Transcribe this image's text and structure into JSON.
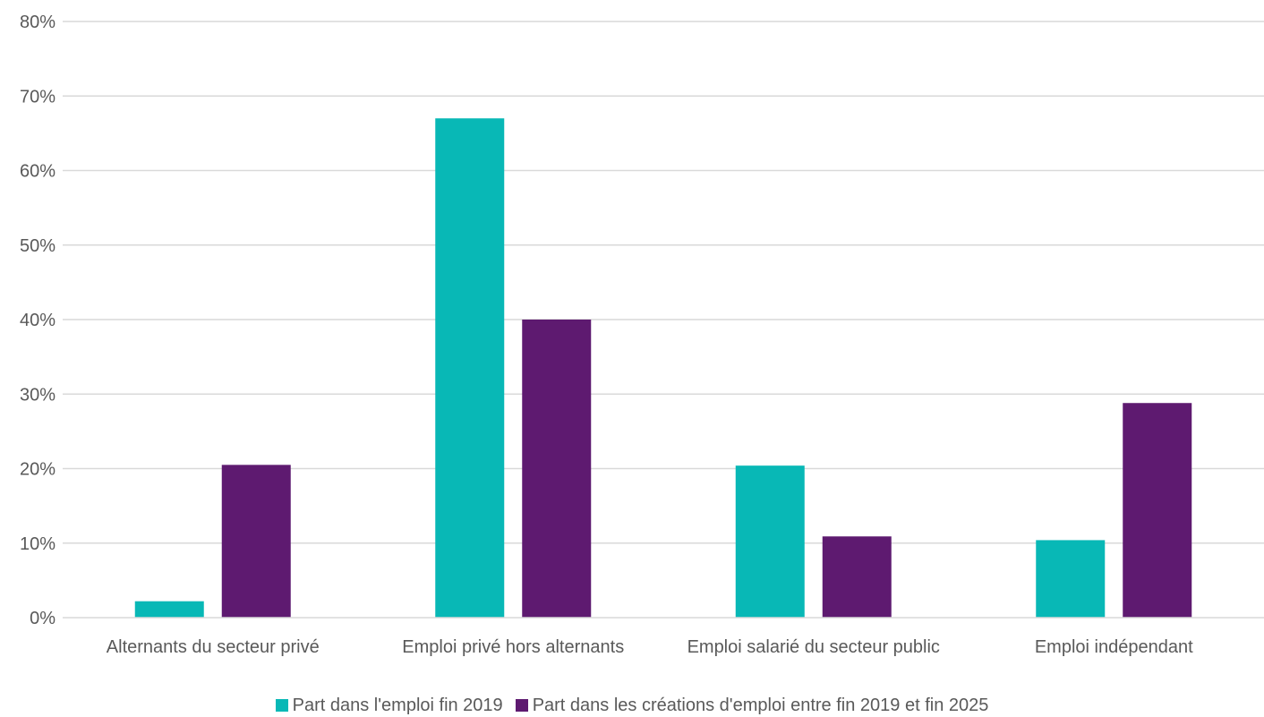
{
  "chart_data": {
    "type": "bar",
    "title": "",
    "xlabel": "",
    "ylabel": "",
    "categories": [
      "Alternants du secteur privé",
      "Emploi privé hors alternants",
      "Emploi salarié du secteur public",
      "Emploi indépendant"
    ],
    "series": [
      {
        "name": "Part dans l'emploi fin 2019",
        "color": "#08B8B6",
        "values": [
          2.2,
          67.0,
          20.4,
          10.4
        ]
      },
      {
        "name": "Part dans les créations d'emploi entre fin 2019 et fin 2025",
        "color": "#5E1A70",
        "values": [
          20.5,
          40.0,
          10.9,
          28.8
        ]
      }
    ],
    "ylim": [
      0,
      80
    ],
    "yticks": [
      "0%",
      "10%",
      "20%",
      "30%",
      "40%",
      "50%",
      "60%",
      "70%",
      "80%"
    ],
    "grid": true,
    "legend_position": "bottom-center"
  }
}
